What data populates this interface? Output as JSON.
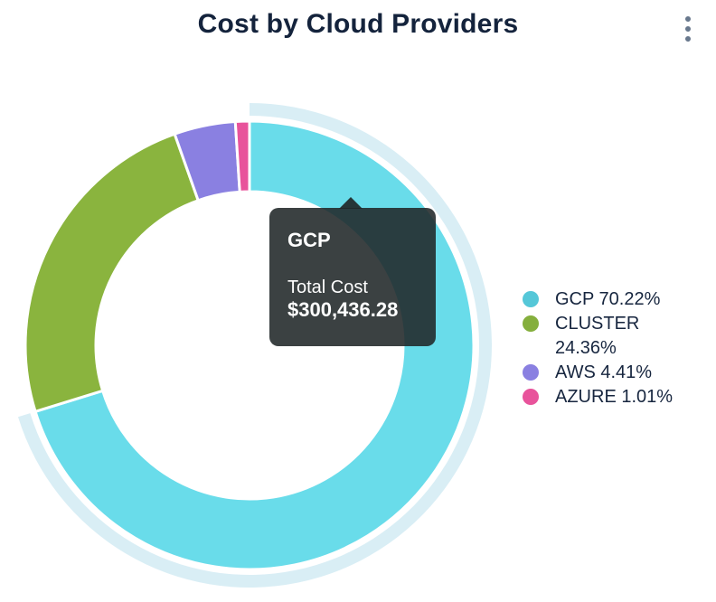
{
  "header": {
    "title": "Cost by Cloud Providers",
    "menu_icon": "kebab-vertical"
  },
  "chart_data": {
    "type": "pie",
    "donut": true,
    "title": "Cost by Cloud Providers",
    "legend_position": "right",
    "unit": "%",
    "hover_ring_color": "#D9EEF5",
    "hovered_slice": "GCP",
    "series": [
      {
        "name": "GCP",
        "percent": 70.22,
        "ring_color": "#69DCEA",
        "legend_color": "#55C7D8",
        "hovered": true,
        "total_cost": "$300,436.28"
      },
      {
        "name": "CLUSTER",
        "percent": 24.36,
        "ring_color": "#8AB43E",
        "legend_color": "#85AF3D",
        "hovered": false
      },
      {
        "name": "AWS",
        "percent": 4.41,
        "ring_color": "#8A80E1",
        "legend_color": "#8A80E1",
        "hovered": false
      },
      {
        "name": "AZURE",
        "percent": 1.01,
        "ring_color": "#E8539B",
        "legend_color": "#E8539B",
        "hovered": false
      }
    ]
  },
  "legend": {
    "items": [
      "GCP 70.22%",
      "CLUSTER 24.36%",
      "AWS 4.41%",
      "AZURE 1.01%"
    ]
  },
  "tooltip": {
    "title": "GCP",
    "label": "Total Cost",
    "value": "$300,436.28"
  }
}
